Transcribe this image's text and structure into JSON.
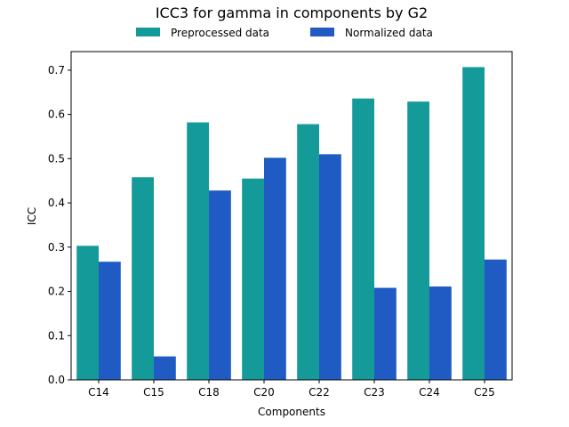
{
  "chart_data": {
    "type": "bar",
    "title": "ICC3 for gamma in components by G2",
    "xlabel": "Components",
    "ylabel": "ICC",
    "categories": [
      "C14",
      "C15",
      "C18",
      "C20",
      "C22",
      "C23",
      "C24",
      "C25"
    ],
    "series": [
      {
        "name": "Preprocessed data",
        "color": "#159a9a",
        "values": [
          0.303,
          0.458,
          0.582,
          0.455,
          0.578,
          0.636,
          0.629,
          0.707
        ]
      },
      {
        "name": "Normalized data",
        "color": "#1f5bc2",
        "values": [
          0.267,
          0.053,
          0.428,
          0.502,
          0.51,
          0.208,
          0.211,
          0.272
        ]
      }
    ],
    "ylim": [
      0,
      0.742
    ],
    "yticks": [
      "0.0",
      "0.1",
      "0.2",
      "0.3",
      "0.4",
      "0.5",
      "0.6",
      "0.7"
    ],
    "legend_position": "top-center",
    "grid": false
  }
}
